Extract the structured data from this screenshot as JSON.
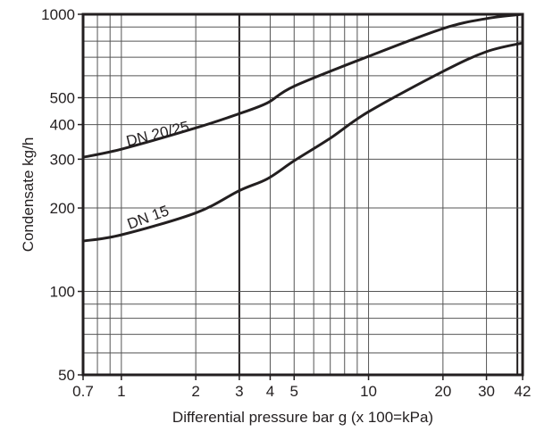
{
  "chart_data": {
    "type": "line",
    "title": "",
    "xlabel": "Differential pressure bar g (x 100=kPa)",
    "ylabel": "Condensate kg/h",
    "x_scale": "log",
    "y_scale": "log",
    "xlim": [
      0.7,
      42
    ],
    "ylim": [
      50,
      1000
    ],
    "grid": true,
    "x_ticks": [
      0.7,
      1,
      2,
      3,
      4,
      5,
      10,
      20,
      30,
      42
    ],
    "x_tick_labels": [
      "0.7",
      "1",
      "2",
      "3",
      "4",
      "5",
      "10",
      "20",
      "30",
      "42"
    ],
    "y_ticks": [
      50,
      100,
      200,
      300,
      400,
      500,
      1000
    ],
    "y_tick_labels": [
      "50",
      "100",
      "200",
      "300",
      "400",
      "500",
      "1000"
    ],
    "x_grid": [
      0.7,
      0.8,
      0.9,
      1,
      2,
      3,
      4,
      5,
      6,
      7,
      8,
      9,
      10,
      20,
      30,
      40,
      42
    ],
    "y_grid": [
      50,
      60,
      70,
      80,
      90,
      100,
      200,
      300,
      400,
      500,
      600,
      700,
      800,
      900,
      1000
    ],
    "line_color": "#231f20",
    "series": [
      {
        "name": "DN 20/25",
        "x": [
          0.7,
          1,
          2,
          3,
          3.9,
          5,
          10,
          20,
          30,
          42
        ],
        "y": [
          305,
          326,
          389,
          438,
          479,
          550,
          705,
          888,
          965,
          1000
        ]
      },
      {
        "name": "DN 15",
        "x": [
          0.7,
          1,
          2,
          3,
          3.9,
          5,
          7,
          10,
          20,
          30,
          42
        ],
        "y": [
          152,
          160,
          192,
          231,
          255,
          296,
          357,
          445,
          622,
          733,
          788
        ]
      }
    ]
  }
}
